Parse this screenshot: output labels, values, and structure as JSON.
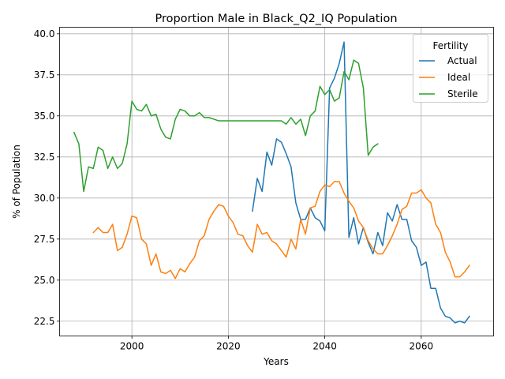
{
  "chart_data": {
    "type": "line",
    "title": "Proportion Male in Black_Q2_IQ Population",
    "xlabel": "Years",
    "ylabel": "% of Population",
    "xlim": [
      1985,
      2075
    ],
    "ylim": [
      21.6,
      40.4
    ],
    "xticks": [
      2000,
      2020,
      2040,
      2060
    ],
    "yticks": [
      22.5,
      25.0,
      27.5,
      30.0,
      32.5,
      35.0,
      37.5,
      40.0
    ],
    "ytick_labels": [
      "22.5",
      "25.0",
      "27.5",
      "30.0",
      "32.5",
      "35.0",
      "37.5",
      "40.0"
    ],
    "grid": true,
    "legend": {
      "title": "Fertility",
      "position": "top-right"
    },
    "series": [
      {
        "name": "Actual",
        "color": "#1f77b4",
        "x": [
          2025,
          2026,
          2027,
          2028,
          2029,
          2030,
          2031,
          2032,
          2033,
          2034,
          2035,
          2036,
          2037,
          2038,
          2039,
          2040,
          2041,
          2042,
          2043,
          2044,
          2045,
          2046,
          2047,
          2048,
          2049,
          2050,
          2051,
          2052,
          2053,
          2054,
          2055,
          2056,
          2057,
          2058,
          2059,
          2060,
          2061,
          2062,
          2063,
          2064,
          2065,
          2066,
          2067,
          2068,
          2069,
          2070
        ],
        "y": [
          29.2,
          31.2,
          30.4,
          32.8,
          32.0,
          33.6,
          33.4,
          32.7,
          31.9,
          29.7,
          28.7,
          28.7,
          29.4,
          28.8,
          28.6,
          28.0,
          36.7,
          37.3,
          38.2,
          39.5,
          27.6,
          28.8,
          27.2,
          28.2,
          27.3,
          26.6,
          27.9,
          27.1,
          29.1,
          28.6,
          29.6,
          28.7,
          28.7,
          27.4,
          27.0,
          25.9,
          26.1,
          24.5,
          24.5,
          23.3,
          22.8,
          22.7,
          22.4,
          22.5,
          22.4,
          22.8
        ]
      },
      {
        "name": "Ideal",
        "color": "#ff7f0e",
        "x": [
          1992,
          1993,
          1994,
          1995,
          1996,
          1997,
          1998,
          1999,
          2000,
          2001,
          2002,
          2003,
          2004,
          2005,
          2006,
          2007,
          2008,
          2009,
          2010,
          2011,
          2012,
          2013,
          2014,
          2015,
          2016,
          2017,
          2018,
          2019,
          2020,
          2021,
          2022,
          2023,
          2024,
          2025,
          2026,
          2027,
          2028,
          2029,
          2030,
          2031,
          2032,
          2033,
          2034,
          2035,
          2036,
          2037,
          2038,
          2039,
          2040,
          2041,
          2042,
          2043,
          2044,
          2045,
          2046,
          2047,
          2048,
          2049,
          2050,
          2051,
          2052,
          2053,
          2054,
          2055,
          2056,
          2057,
          2058,
          2059,
          2060,
          2061,
          2062,
          2063,
          2064,
          2065,
          2066,
          2067,
          2068,
          2069,
          2070
        ],
        "y": [
          27.9,
          28.2,
          27.9,
          27.9,
          28.4,
          26.8,
          27.0,
          27.8,
          28.9,
          28.8,
          27.5,
          27.2,
          25.9,
          26.6,
          25.5,
          25.4,
          25.6,
          25.1,
          25.7,
          25.5,
          26.0,
          26.4,
          27.4,
          27.7,
          28.7,
          29.2,
          29.6,
          29.5,
          28.9,
          28.5,
          27.8,
          27.7,
          27.1,
          26.7,
          28.4,
          27.8,
          27.9,
          27.4,
          27.2,
          26.8,
          26.4,
          27.5,
          26.9,
          28.7,
          27.8,
          29.4,
          29.5,
          30.4,
          30.8,
          30.7,
          31.0,
          31.0,
          30.3,
          29.8,
          29.4,
          28.6,
          28.2,
          27.4,
          26.9,
          26.6,
          26.6,
          27.1,
          27.7,
          28.4,
          29.3,
          29.5,
          30.3,
          30.3,
          30.5,
          30.0,
          29.7,
          28.4,
          27.9,
          26.7,
          26.1,
          25.2,
          25.2,
          25.5,
          25.9
        ]
      },
      {
        "name": "Sterile",
        "color": "#2ca02c",
        "x": [
          1988,
          1989,
          1990,
          1991,
          1992,
          1993,
          1994,
          1995,
          1996,
          1997,
          1998,
          1999,
          2000,
          2001,
          2002,
          2003,
          2004,
          2005,
          2006,
          2007,
          2008,
          2009,
          2010,
          2011,
          2012,
          2013,
          2014,
          2015,
          2016,
          2017,
          2018,
          2019,
          2020,
          2021,
          2022,
          2023,
          2024,
          2025,
          2026,
          2027,
          2028,
          2029,
          2030,
          2031,
          2032,
          2033,
          2034,
          2035,
          2036,
          2037,
          2038,
          2039,
          2040,
          2041,
          2042,
          2043,
          2044,
          2045,
          2046,
          2047,
          2048,
          2049,
          2050,
          2051
        ],
        "y": [
          34.0,
          33.3,
          30.4,
          31.9,
          31.8,
          33.1,
          32.9,
          31.8,
          32.5,
          31.8,
          32.1,
          33.3,
          35.9,
          35.4,
          35.3,
          35.7,
          35.0,
          35.1,
          34.2,
          33.7,
          33.6,
          34.8,
          35.4,
          35.3,
          35.0,
          35.0,
          35.2,
          34.9,
          34.9,
          34.8,
          34.7,
          34.7,
          34.7,
          34.7,
          34.7,
          34.7,
          34.7,
          34.7,
          34.7,
          34.7,
          34.7,
          34.7,
          34.7,
          34.7,
          34.5,
          34.9,
          34.5,
          34.8,
          33.8,
          35.0,
          35.3,
          36.8,
          36.3,
          36.6,
          35.9,
          36.1,
          37.7,
          37.2,
          38.4,
          38.2,
          36.7,
          32.6,
          33.1,
          33.3
        ]
      }
    ]
  }
}
